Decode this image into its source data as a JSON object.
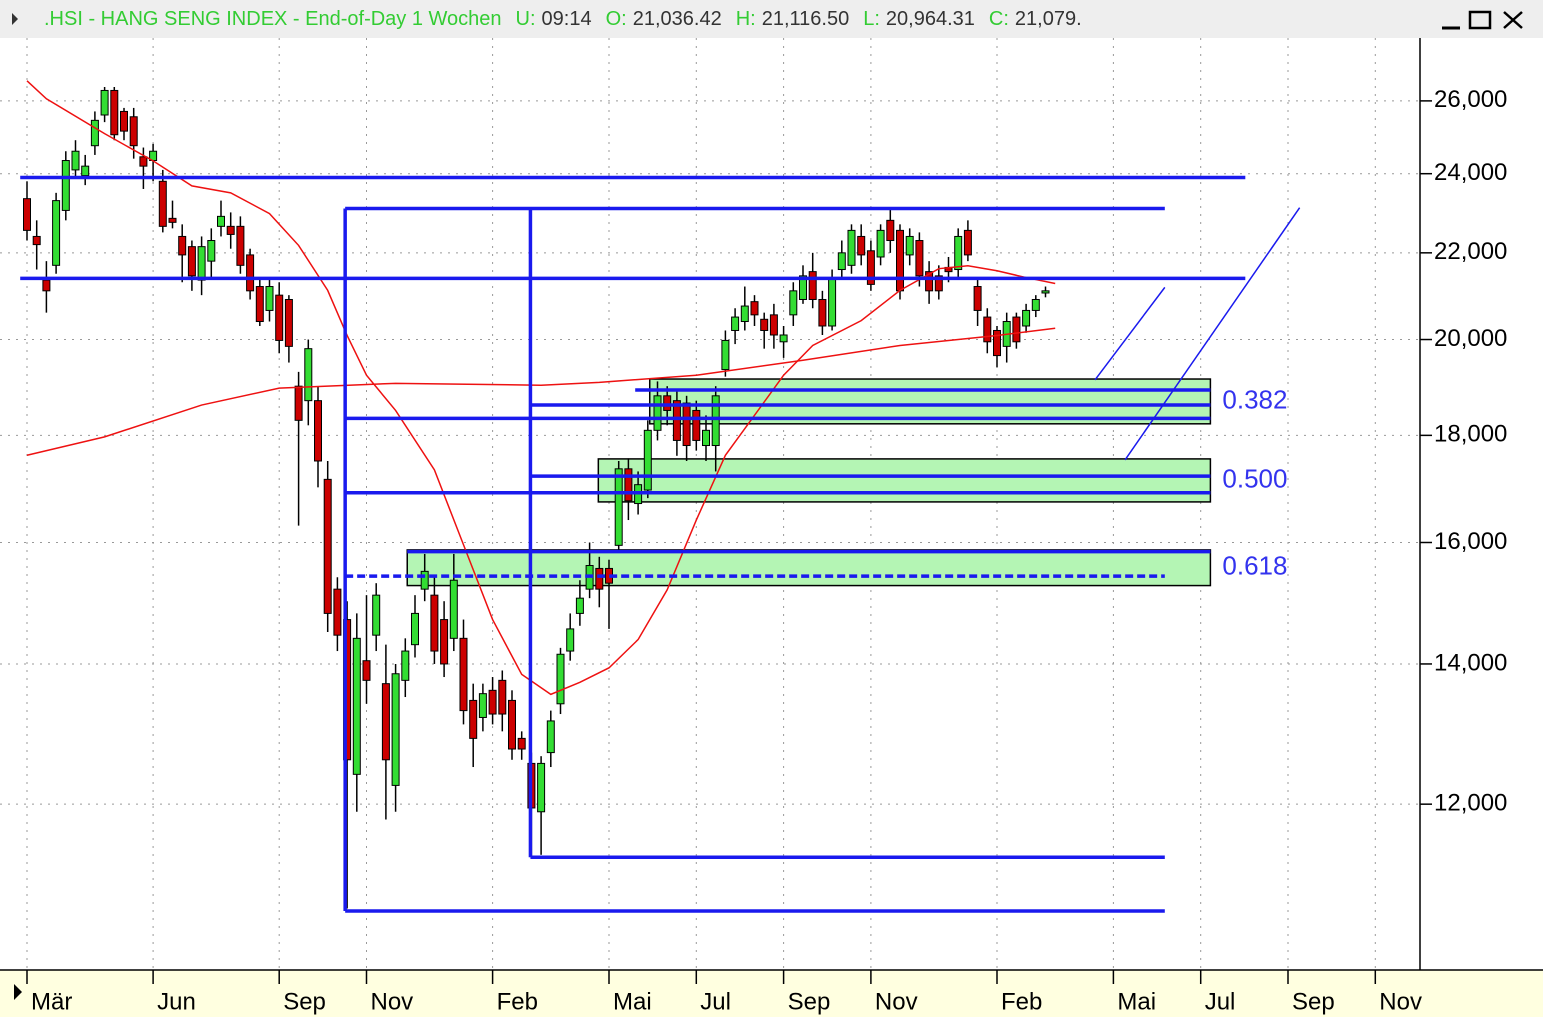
{
  "chart_data": {
    "type": "candlestick",
    "title": ".HSI - HANG SENG INDEX - End-of-Day 1 Wochen",
    "quote": [
      {
        "label": "U:",
        "value": "09:14"
      },
      {
        "label": "O:",
        "value": "21,036.42"
      },
      {
        "label": "H:",
        "value": "21,116.50"
      },
      {
        "label": "L:",
        "value": "20,964.31"
      },
      {
        "label": "C:",
        "value": "21,079."
      }
    ],
    "log_scale": true,
    "grid": true,
    "up_color": "#33dd33",
    "down_color": "#cc0000",
    "line_color": "#1a1aee",
    "zone_color": "#b4f5b4",
    "ylim": [
      10000,
      27800
    ],
    "yticks": [
      {
        "value": 12000,
        "label": "12,000"
      },
      {
        "value": 14000,
        "label": "14,000"
      },
      {
        "value": 16000,
        "label": "16,000"
      },
      {
        "value": 18000,
        "label": "18,000"
      },
      {
        "value": 20000,
        "label": "20,000"
      },
      {
        "value": 22000,
        "label": "22,000"
      },
      {
        "value": 24000,
        "label": "24,000"
      },
      {
        "value": 26000,
        "label": "26,000"
      }
    ],
    "categories": [
      "Mär",
      null,
      null,
      null,
      null,
      null,
      null,
      null,
      null,
      null,
      null,
      null,
      null,
      "Jun",
      null,
      null,
      null,
      null,
      null,
      null,
      null,
      null,
      null,
      null,
      null,
      null,
      "Sep",
      null,
      null,
      null,
      null,
      null,
      null,
      null,
      null,
      "Nov",
      null,
      null,
      null,
      null,
      null,
      null,
      null,
      null,
      null,
      null,
      null,
      null,
      "Feb",
      null,
      null,
      null,
      null,
      null,
      null,
      null,
      null,
      null,
      null,
      null,
      "Mai",
      null,
      null,
      null,
      null,
      null,
      null,
      null,
      null,
      "Jul",
      null,
      null,
      null,
      null,
      null,
      null,
      null,
      null,
      "Sep",
      null,
      null,
      null,
      null,
      null,
      null,
      null,
      null,
      "Nov",
      null,
      null,
      null,
      null,
      null,
      null,
      null,
      null,
      null,
      null,
      null,
      null,
      "Feb",
      null,
      null,
      null,
      null,
      null,
      null,
      null,
      null,
      null,
      null,
      null,
      "Mai",
      null,
      null,
      null,
      null,
      null,
      null,
      null,
      null,
      "Jul",
      null,
      null,
      null,
      null,
      null,
      null,
      null,
      null,
      "Sep",
      null,
      null,
      null,
      null,
      null,
      null,
      null,
      null,
      "Nov",
      null
    ],
    "open": [
      23350,
      22400,
      21350,
      21700,
      23050,
      24100,
      23950,
      24750,
      25600,
      26300,
      25700,
      25550,
      24450,
      24350,
      23800,
      22850,
      22400,
      22150,
      21350,
      21800,
      22650,
      22650,
      22650,
      21950,
      21200,
      20650,
      21000,
      20900,
      19000,
      18700,
      18700,
      17150,
      15200,
      14700,
      12400,
      14050,
      14450,
      13700,
      12250,
      13750,
      14300,
      15200,
      15100,
      14700,
      14400,
      14400,
      13450,
      13200,
      13600,
      13750,
      13450,
      12900,
      12550,
      11900,
      12700,
      13400,
      14200,
      14800,
      15200,
      15550,
      15550,
      15950,
      17350,
      16700,
      16950,
      18100,
      18800,
      18700,
      18650,
      18500,
      17800,
      17800,
      19350,
      20200,
      20400,
      20850,
      20450,
      20550,
      19950,
      20550,
      20900,
      21550,
      20900,
      20300,
      21600,
      21700,
      22400,
      22050,
      21900,
      22800,
      22550,
      21950,
      22300,
      21550,
      21450,
      21650,
      21600,
      22550,
      21200,
      20500,
      20200,
      19850,
      20500,
      20300,
      20650,
      21050,
      null,
      null,
      null,
      null,
      null,
      null,
      null,
      null,
      null,
      null,
      null,
      null,
      null,
      null,
      null,
      null,
      null,
      null,
      null,
      null,
      null,
      null,
      null,
      null,
      null,
      null,
      null,
      null,
      null,
      null,
      null,
      null,
      null,
      null,
      null
    ],
    "high": [
      23800,
      22800,
      21800,
      23500,
      24600,
      24900,
      24500,
      25700,
      26400,
      26400,
      25800,
      25800,
      24700,
      24800,
      24100,
      23300,
      22700,
      22300,
      22400,
      22600,
      23300,
      23000,
      22900,
      22100,
      21400,
      21400,
      21300,
      21000,
      19300,
      20000,
      19000,
      17500,
      15400,
      15000,
      14800,
      15100,
      15300,
      14300,
      14000,
      14400,
      15100,
      15800,
      15400,
      15000,
      15800,
      14700,
      13700,
      13700,
      13800,
      13900,
      13600,
      13000,
      12700,
      12650,
      13300,
      14250,
      14800,
      15350,
      16000,
      15750,
      15700,
      17500,
      17550,
      17300,
      18300,
      19100,
      19000,
      18900,
      18800,
      18700,
      18400,
      19000,
      20200,
      20700,
      21200,
      21000,
      20600,
      20800,
      20300,
      21300,
      21700,
      22000,
      21100,
      21600,
      22300,
      22700,
      22700,
      22300,
      22700,
      23100,
      22700,
      22600,
      22500,
      21800,
      21700,
      21900,
      22600,
      22800,
      21400,
      20700,
      20300,
      20600,
      20600,
      20800,
      21000,
      21200,
      null,
      null,
      null,
      null,
      null,
      null,
      null,
      null,
      null,
      null,
      null,
      null,
      null,
      null,
      null,
      null,
      null,
      null,
      null,
      null,
      null,
      null,
      null,
      null,
      null,
      null,
      null,
      null,
      null,
      null,
      null,
      null,
      null,
      null,
      null
    ],
    "low": [
      22300,
      21600,
      20600,
      21500,
      22800,
      23900,
      23700,
      24500,
      25400,
      24900,
      24900,
      24400,
      23600,
      23800,
      22500,
      22600,
      21300,
      21100,
      21000,
      21400,
      22400,
      22100,
      21500,
      20900,
      20300,
      20400,
      19700,
      19500,
      16300,
      18200,
      17000,
      14500,
      14200,
      10700,
      11900,
      13400,
      14200,
      11800,
      11900,
      13500,
      14100,
      15000,
      14000,
      13800,
      14200,
      13100,
      12500,
      13000,
      13100,
      13000,
      12600,
      12600,
      11300,
      11350,
      12500,
      13250,
      14050,
      14600,
      15050,
      14900,
      14550,
      15850,
      16400,
      16500,
      16800,
      17900,
      18200,
      17600,
      17500,
      17700,
      17500,
      17300,
      19200,
      19900,
      20200,
      20300,
      19800,
      19800,
      19600,
      20300,
      20800,
      20700,
      20100,
      20200,
      21400,
      21500,
      21700,
      21100,
      21700,
      22000,
      20900,
      21700,
      21200,
      20800,
      20900,
      21300,
      21400,
      21800,
      20300,
      19700,
      19400,
      19500,
      19800,
      20150,
      20500,
      20950,
      null,
      null,
      null,
      null,
      null,
      null,
      null,
      null,
      null,
      null,
      null,
      null,
      null,
      null,
      null,
      null,
      null,
      null,
      null,
      null,
      null,
      null,
      null,
      null,
      null,
      null,
      null,
      null,
      null,
      null,
      null,
      null,
      null,
      null,
      null
    ],
    "close": [
      22550,
      22200,
      21100,
      23300,
      24350,
      24600,
      24200,
      25450,
      26300,
      25050,
      25150,
      24750,
      24200,
      24600,
      22650,
      22750,
      21950,
      21450,
      22150,
      22300,
      22900,
      22450,
      21700,
      21100,
      20400,
      21200,
      19980,
      19850,
      18300,
      19800,
      17500,
      14800,
      14450,
      12600,
      14400,
      13750,
      15100,
      12600,
      13850,
      14200,
      14800,
      15500,
      14200,
      14000,
      15350,
      13300,
      12900,
      13550,
      13250,
      13250,
      12750,
      12750,
      11950,
      12550,
      13150,
      14150,
      14550,
      15050,
      15600,
      15200,
      15300,
      17350,
      16750,
      17050,
      18100,
      18800,
      18500,
      17900,
      17800,
      17900,
      18100,
      18800,
      19980,
      20500,
      20750,
      20550,
      20200,
      20100,
      20100,
      21100,
      21450,
      20900,
      20300,
      21400,
      22000,
      22550,
      21950,
      21250,
      22550,
      22300,
      21100,
      22400,
      21450,
      21100,
      21100,
      21550,
      22400,
      21950,
      20650,
      19950,
      19650,
      20400,
      19950,
      20650,
      20900,
      21100,
      null,
      null,
      null,
      null,
      null,
      null,
      null,
      null,
      null,
      null,
      null,
      null,
      null,
      null,
      null,
      null,
      null,
      null,
      null,
      null,
      null,
      null,
      null,
      null,
      null,
      null,
      null,
      null,
      null,
      null,
      null,
      null,
      null,
      null,
      null
    ],
    "series": [
      {
        "color": "#ee1111",
        "x": [
          0,
          2,
          8,
          13,
          17,
          21,
          25,
          28,
          31,
          33,
          35,
          38,
          42,
          45,
          48,
          51,
          54,
          57,
          60,
          63,
          66,
          69,
          72,
          75,
          78,
          81,
          86,
          90,
          94,
          97,
          100,
          103,
          106
        ],
        "values": [
          26580,
          26060,
          25080,
          24340,
          23680,
          23500,
          22970,
          22180,
          21110,
          20090,
          19230,
          18500,
          17330,
          15960,
          14700,
          13840,
          13540,
          13720,
          13940,
          14380,
          15190,
          16400,
          17610,
          18400,
          19230,
          19870,
          20420,
          21110,
          21620,
          21690,
          21570,
          21410,
          21270
        ]
      },
      {
        "color": "#ee1111",
        "x": [
          0,
          8,
          18,
          26,
          38,
          53,
          59,
          69,
          80,
          90,
          100,
          106
        ],
        "values": [
          17610,
          17970,
          18610,
          18960,
          19060,
          19020,
          19080,
          19230,
          19550,
          19870,
          20090,
          20250
        ]
      }
    ],
    "zones": [
      {
        "label": "0.382",
        "x": [
          64.2,
          122
        ],
        "y": [
          19150,
          18230
        ]
      },
      {
        "label": "0.500",
        "x": [
          58.9,
          122
        ],
        "y": [
          17540,
          16730
        ]
      },
      {
        "label": "0.618",
        "x": [
          39.2,
          122
        ],
        "y": [
          15870,
          15260
        ]
      }
    ],
    "lines": [
      {
        "x": [
          -0.7,
          125.6
        ],
        "y": [
          23900,
          23900
        ]
      },
      {
        "x": [
          -0.7,
          125.6
        ],
        "y": [
          21390,
          21390
        ]
      },
      {
        "x": [
          32.8,
          117.3
        ],
        "y": [
          23100,
          23100
        ]
      },
      {
        "x": [
          32.8,
          32.8
        ],
        "y": [
          23100,
          10670
        ]
      },
      {
        "x": [
          32.8,
          117.3
        ],
        "y": [
          10670,
          10670
        ]
      },
      {
        "x": [
          51.9,
          51.9
        ],
        "y": [
          23100,
          11320
        ]
      },
      {
        "x": [
          51.9,
          117.3
        ],
        "y": [
          11320,
          11320
        ]
      },
      {
        "x": [
          62.7,
          122
        ],
        "y": [
          18920,
          18920
        ]
      },
      {
        "x": [
          51.9,
          122
        ],
        "y": [
          18610,
          18610
        ]
      },
      {
        "x": [
          32.8,
          122
        ],
        "y": [
          18340,
          18340
        ]
      },
      {
        "x": [
          51.9,
          122
        ],
        "y": [
          17210,
          17210
        ]
      },
      {
        "x": [
          32.8,
          122
        ],
        "y": [
          16900,
          16900
        ]
      },
      {
        "x": [
          39.2,
          122
        ],
        "y": [
          15840,
          15840
        ]
      },
      {
        "x": [
          32.8,
          117.3
        ],
        "y": [
          15420,
          15420
        ],
        "dashed": true
      },
      {
        "x": [
          110.1,
          117.3
        ],
        "y": [
          19130,
          21180
        ],
        "thin": true
      },
      {
        "x": [
          113.2,
          131.2
        ],
        "y": [
          17520,
          23120
        ],
        "thin": true
      }
    ]
  }
}
